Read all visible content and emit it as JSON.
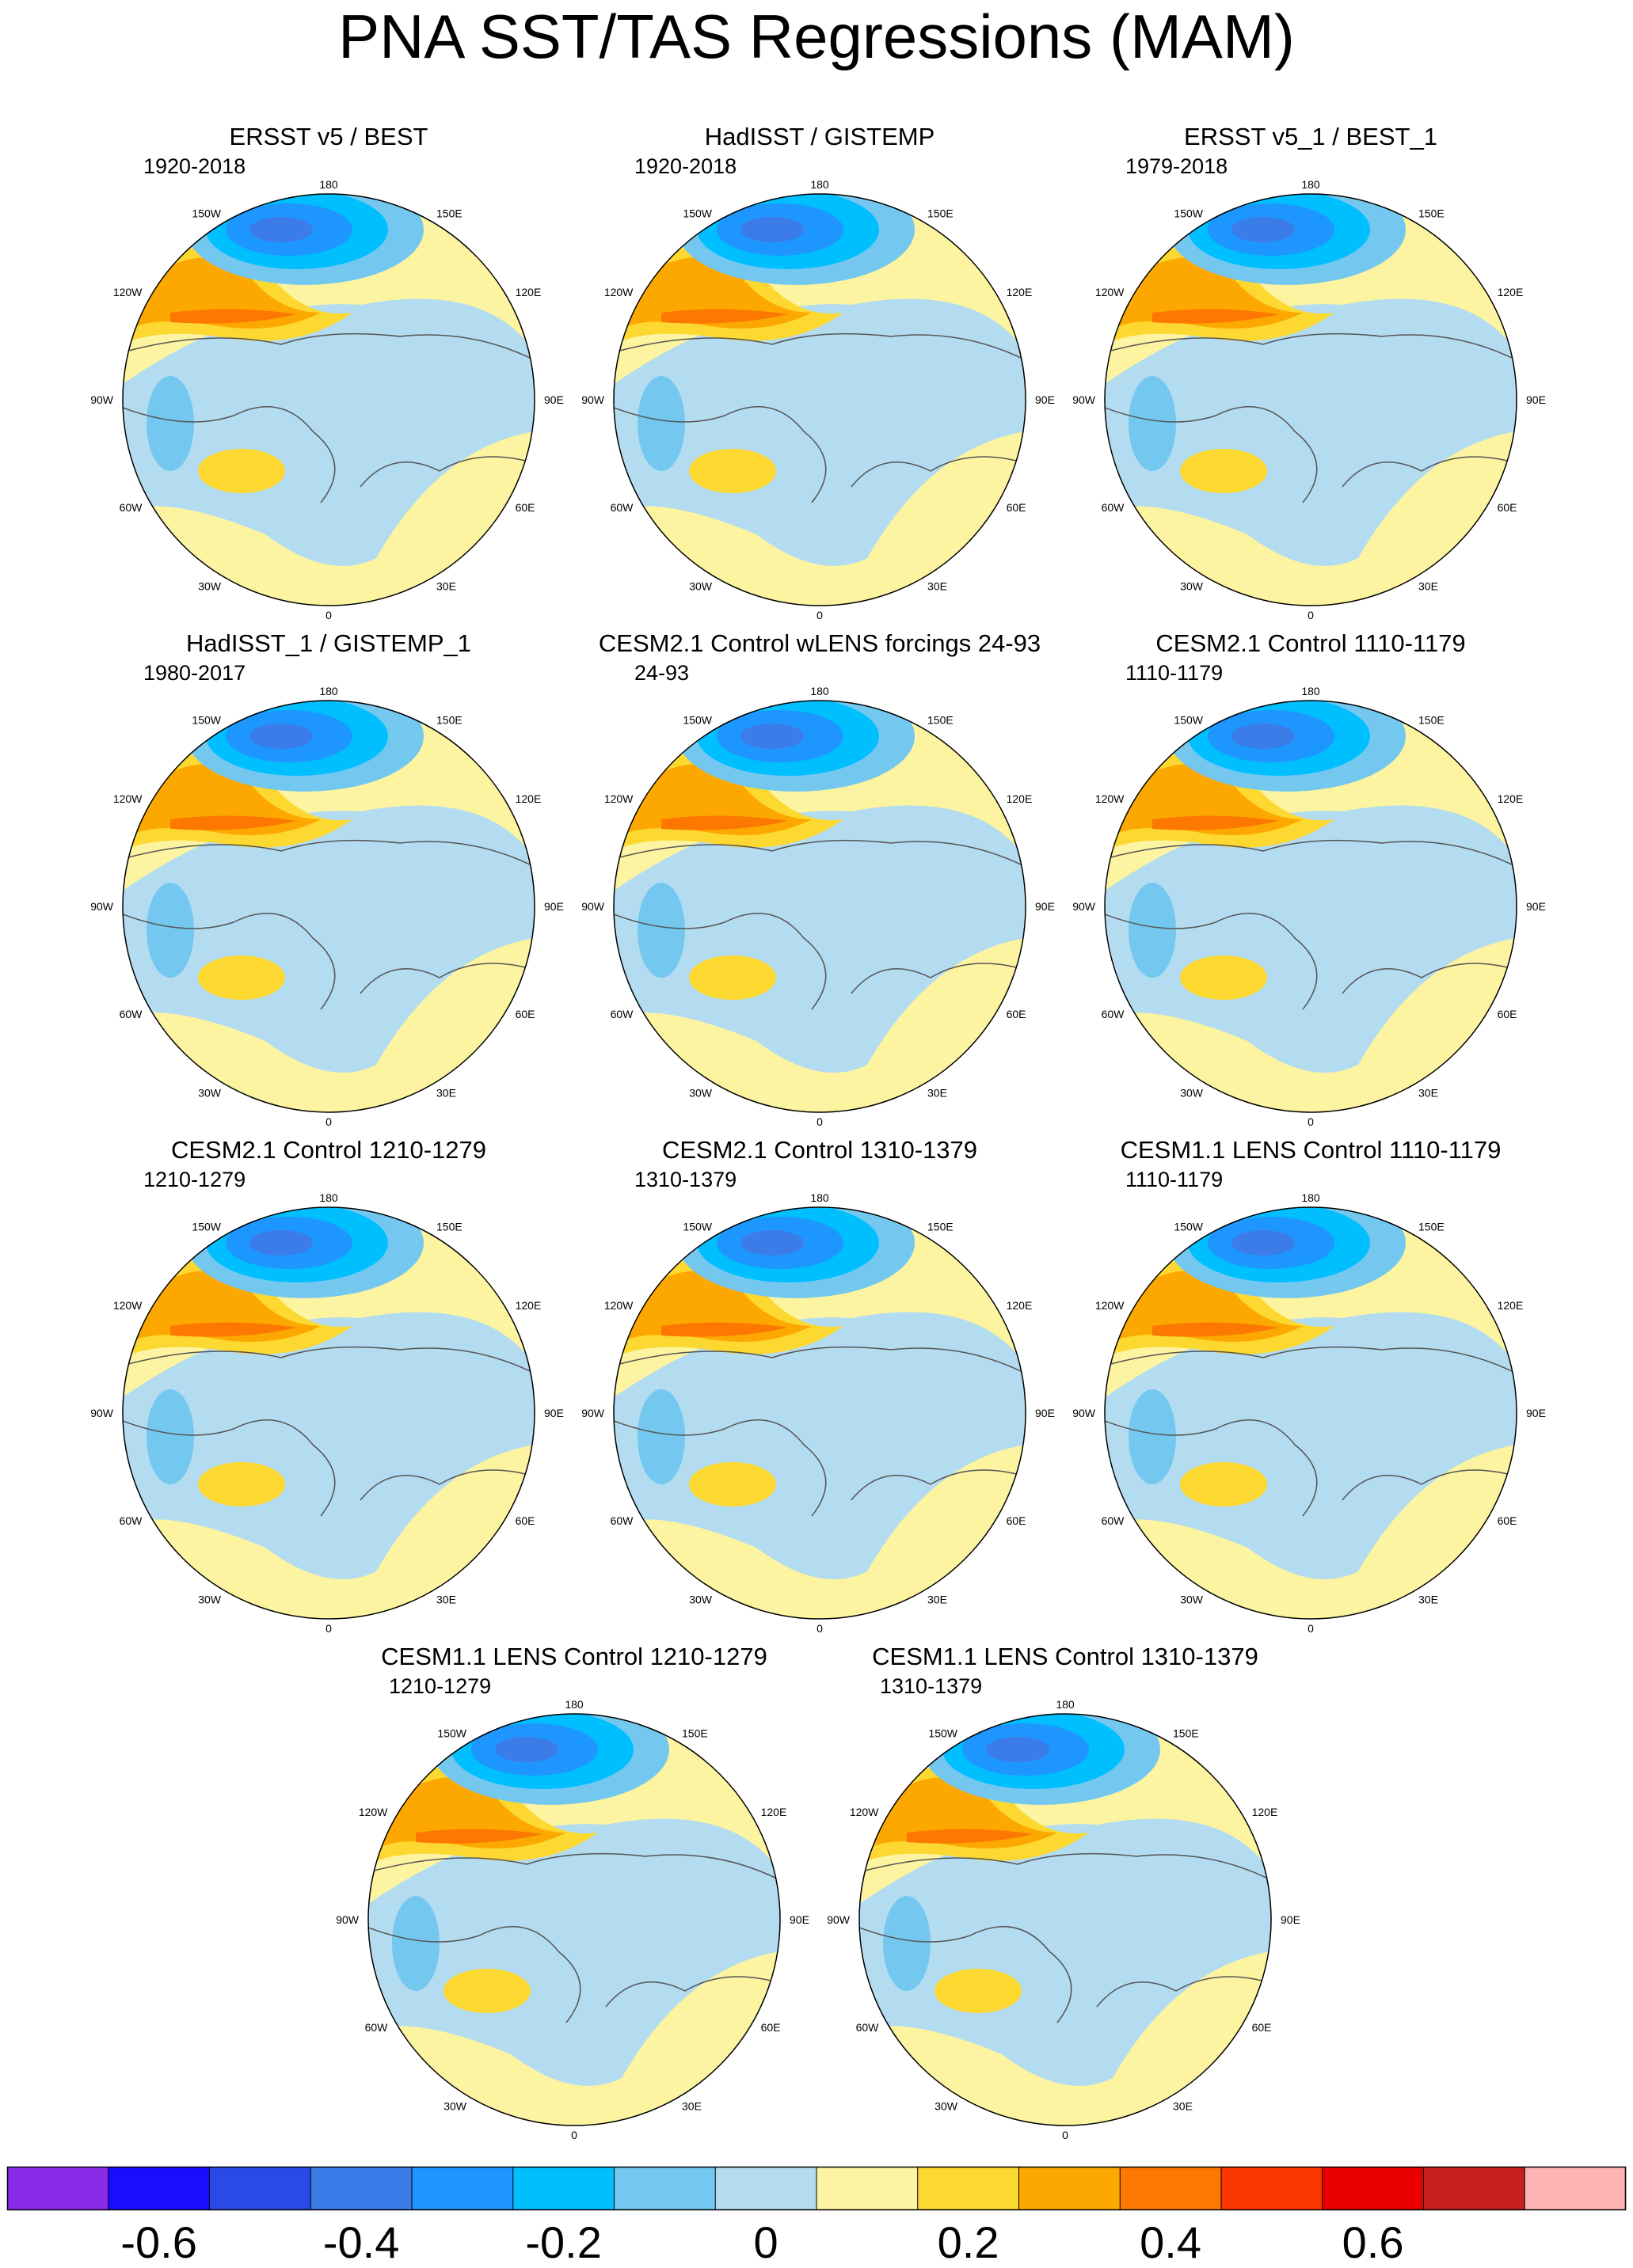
{
  "title": "PNA SST/TAS Regressions (MAM)",
  "longitude_labels": {
    "top": "180",
    "upper_left": "150W",
    "upper_right": "150E",
    "mid_upper_left": "120W",
    "mid_upper_right": "120E",
    "left": "90W",
    "right": "90E",
    "mid_lower_left": "60W",
    "mid_lower_right": "60E",
    "lower_left": "30W",
    "lower_right": "30E",
    "bottom": "0"
  },
  "panels": [
    {
      "title": "ERSST v5 / BEST",
      "years": "1920-2018"
    },
    {
      "title": "HadISST / GISTEMP",
      "years": "1920-2018"
    },
    {
      "title": "ERSST v5_1 / BEST_1",
      "years": "1979-2018"
    },
    {
      "title": "HadISST_1 / GISTEMP_1",
      "years": "1980-2017"
    },
    {
      "title": "CESM2.1 Control wLENS forcings 24-93",
      "years": "24-93"
    },
    {
      "title": "CESM2.1 Control 1110-1179",
      "years": "1110-1179"
    },
    {
      "title": "CESM2.1 Control 1210-1279",
      "years": "1210-1279"
    },
    {
      "title": "CESM2.1 Control 1310-1379",
      "years": "1310-1379"
    },
    {
      "title": "CESM1.1 LENS Control 1110-1179",
      "years": "1110-1179"
    },
    {
      "title": "CESM1.1 LENS Control 1210-1279",
      "years": "1210-1279"
    },
    {
      "title": "CESM1.1 LENS Control 1310-1379",
      "years": "1310-1379"
    }
  ],
  "colorbar": {
    "colors": [
      "#8a2be8",
      "#1a0dff",
      "#2a4ae8",
      "#3c7ce8",
      "#1e96ff",
      "#00bfff",
      "#74c8f0",
      "#b4dcf0",
      "#fcf4a0",
      "#fcd830",
      "#fca800",
      "#fc7800",
      "#fc3600",
      "#e80000",
      "#c81e1e",
      "#fcb4b4"
    ],
    "labels": [
      {
        "text": "-0.6",
        "value": -0.6
      },
      {
        "text": "-0.4",
        "value": -0.4
      },
      {
        "text": "-0.2",
        "value": -0.2
      },
      {
        "text": "0",
        "value": 0
      },
      {
        "text": "0.2",
        "value": 0.2
      },
      {
        "text": "0.4",
        "value": 0.4
      },
      {
        "text": "0.6",
        "value": 0.6
      }
    ],
    "min": -0.75,
    "max": 0.85
  }
}
